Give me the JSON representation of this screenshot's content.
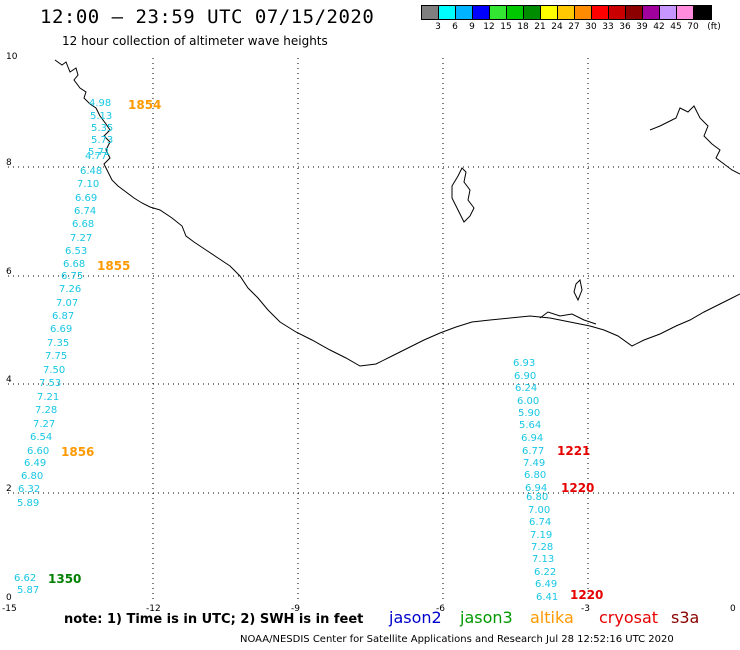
{
  "title": "12:00 – 23:59 UTC 07/15/2020",
  "subtitle": "12 hour collection of altimeter wave heights",
  "legend": {
    "unit": "(ft)",
    "bins": [
      {
        "label": "3",
        "color": "#7f7f7f"
      },
      {
        "label": "6",
        "color": "#00ffff"
      },
      {
        "label": "9",
        "color": "#00b4ff"
      },
      {
        "label": "12",
        "color": "#0000ff"
      },
      {
        "label": "15",
        "color": "#32e632"
      },
      {
        "label": "18",
        "color": "#00c800"
      },
      {
        "label": "21",
        "color": "#008c00"
      },
      {
        "label": "24",
        "color": "#ffff00"
      },
      {
        "label": "27",
        "color": "#ffc800"
      },
      {
        "label": "30",
        "color": "#ff8c00"
      },
      {
        "label": "33",
        "color": "#ff0000"
      },
      {
        "label": "36",
        "color": "#c80000"
      },
      {
        "label": "39",
        "color": "#8c0000"
      },
      {
        "label": "42",
        "color": "#a0009b"
      },
      {
        "label": "45",
        "color": "#c896ff"
      },
      {
        "label": "70",
        "color": "#ff8cdc"
      },
      {
        "label": "",
        "color": "#000000"
      }
    ]
  },
  "axes": {
    "x_ticks": [
      "-15",
      "-12",
      "-9",
      "-6",
      "-3",
      "0"
    ],
    "y_ticks": [
      "10",
      "8",
      "6",
      "4",
      "2",
      "0"
    ]
  },
  "track_left": {
    "values": [
      "4.98",
      "5.13",
      "5.35",
      "5.73",
      "5.71",
      "4.77",
      "6.48",
      "7.10",
      "6.69",
      "6.74",
      "6.68",
      "7.27",
      "6.53",
      "6.68",
      "6.75",
      "7.26",
      "7.07",
      "6.87",
      "6.69",
      "7.35",
      "7.75",
      "7.50",
      "7.53",
      "7.21",
      "7.28",
      "7.27",
      "6.54",
      "6.60",
      "6.49",
      "6.80",
      "6.32",
      "5.89",
      "6.62",
      "5.87"
    ]
  },
  "track_right": {
    "values": [
      "6.93",
      "6.90",
      "6.24",
      "6.00",
      "5.90",
      "5.64",
      "6.94",
      "6.77",
      "7.49",
      "6.80",
      "6.94",
      "6.80",
      "7.00",
      "6.74",
      "7.19",
      "7.28",
      "7.13",
      "6.22",
      "6.49",
      "6.41"
    ]
  },
  "time_labels": [
    {
      "text": "1854",
      "color": "#ff9900"
    },
    {
      "text": "1855",
      "color": "#ff9900"
    },
    {
      "text": "1856",
      "color": "#ff9900"
    },
    {
      "text": "1350",
      "color": "#007f00"
    },
    {
      "text": "1221",
      "color": "#e60000"
    },
    {
      "text": "1220",
      "color": "#e60000"
    },
    {
      "text": "1220",
      "color": "#e60000"
    }
  ],
  "note": "note: 1) Time is in UTC; 2) SWH is in feet",
  "satellites": [
    {
      "name": "jason2",
      "color": "#0000cc"
    },
    {
      "name": "jason3",
      "color": "#009900"
    },
    {
      "name": "altika",
      "color": "#ff9900"
    },
    {
      "name": "cryosat",
      "color": "#e60000"
    },
    {
      "name": "s3a",
      "color": "#8b0000"
    }
  ],
  "footer": "NOAA/NESDIS Center for Satellite Applications and Research   Jul 28 12:52:16 UTC 2020"
}
